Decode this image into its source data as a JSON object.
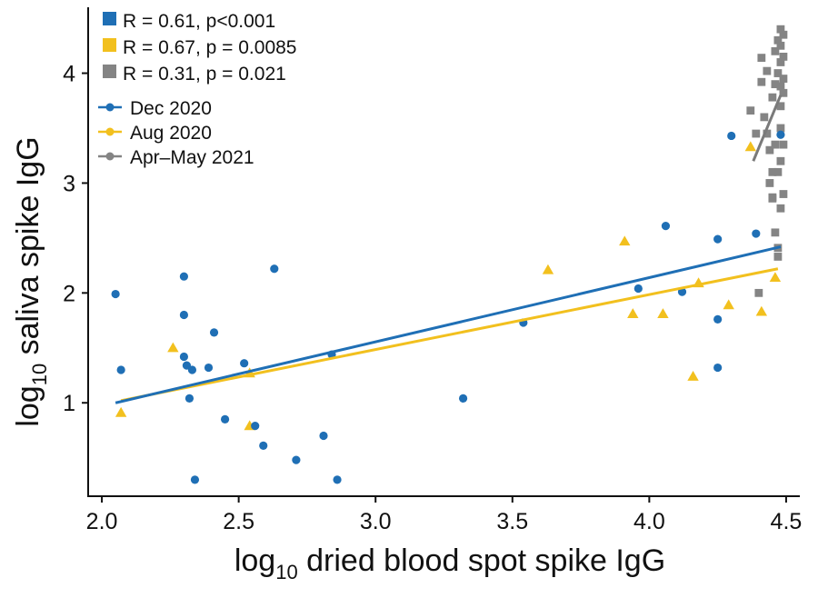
{
  "chart_data": {
    "type": "scatter",
    "xlabel": "log10 dried blood spot spike IgG",
    "ylabel": "log10 saliva spike IgG",
    "axis_label_parts": {
      "x": {
        "prefix": "log",
        "sub": "10",
        "suffix": " dried blood spot spike IgG"
      },
      "y": {
        "prefix": "log",
        "sub": "10",
        "suffix": " saliva spike IgG"
      }
    },
    "xlim": [
      1.95,
      4.55
    ],
    "ylim": [
      0.15,
      4.6
    ],
    "x_ticks": [
      2.0,
      2.5,
      3.0,
      3.5,
      4.0,
      4.5
    ],
    "x_tick_labels": [
      "2.0",
      "2.5",
      "3.0",
      "3.5",
      "4.0",
      "4.5"
    ],
    "y_ticks": [
      1,
      2,
      3,
      4
    ],
    "y_tick_labels": [
      "1",
      "2",
      "3",
      "4"
    ],
    "grid": false,
    "legend_placement": "top-left",
    "stats_legend": [
      {
        "label": "R = 0.61, p<0.001",
        "color": "#1f6fb5"
      },
      {
        "label": "R = 0.67, p = 0.0085",
        "color": "#f2c01e"
      },
      {
        "label": "R = 0.31, p = 0.021",
        "color": "#848484"
      }
    ],
    "series": [
      {
        "name": "Dec 2020",
        "color": "#1f6fb5",
        "marker": "circle",
        "fit": [
          [
            2.05,
            1.0
          ],
          [
            4.48,
            2.42
          ]
        ],
        "points": [
          [
            2.05,
            1.99
          ],
          [
            2.07,
            1.3
          ],
          [
            2.3,
            2.15
          ],
          [
            2.3,
            1.8
          ],
          [
            2.3,
            1.42
          ],
          [
            2.31,
            1.34
          ],
          [
            2.33,
            1.3
          ],
          [
            2.32,
            1.04
          ],
          [
            2.34,
            0.3
          ],
          [
            2.39,
            1.32
          ],
          [
            2.41,
            1.64
          ],
          [
            2.45,
            0.85
          ],
          [
            2.52,
            1.36
          ],
          [
            2.56,
            0.79
          ],
          [
            2.59,
            0.61
          ],
          [
            2.63,
            2.22
          ],
          [
            2.71,
            0.48
          ],
          [
            2.81,
            0.7
          ],
          [
            2.84,
            1.44
          ],
          [
            2.86,
            0.3
          ],
          [
            3.32,
            1.04
          ],
          [
            3.54,
            1.73
          ],
          [
            3.96,
            2.04
          ],
          [
            4.06,
            2.61
          ],
          [
            4.12,
            2.01
          ],
          [
            4.25,
            1.76
          ],
          [
            4.25,
            1.32
          ],
          [
            4.25,
            2.49
          ],
          [
            4.3,
            3.43
          ],
          [
            4.39,
            2.54
          ],
          [
            4.48,
            3.44
          ]
        ]
      },
      {
        "name": "Aug 2020",
        "color": "#f2c01e",
        "marker": "triangle",
        "fit": [
          [
            2.07,
            1.02
          ],
          [
            4.47,
            2.22
          ]
        ],
        "points": [
          [
            2.07,
            0.91
          ],
          [
            2.26,
            1.5
          ],
          [
            2.54,
            0.79
          ],
          [
            2.54,
            1.27
          ],
          [
            3.63,
            2.21
          ],
          [
            3.91,
            2.47
          ],
          [
            3.94,
            1.81
          ],
          [
            4.05,
            1.81
          ],
          [
            4.16,
            1.24
          ],
          [
            4.18,
            2.09
          ],
          [
            4.29,
            1.89
          ],
          [
            4.37,
            3.33
          ],
          [
            4.41,
            1.83
          ],
          [
            4.46,
            2.14
          ]
        ]
      },
      {
        "name": "Apr–May 2021",
        "color": "#848484",
        "marker": "square",
        "fit": [
          [
            4.38,
            3.2
          ],
          [
            4.48,
            3.8
          ]
        ],
        "points": [
          [
            4.37,
            3.66
          ],
          [
            4.39,
            3.45
          ],
          [
            4.4,
            2.0
          ],
          [
            4.41,
            3.92
          ],
          [
            4.41,
            4.14
          ],
          [
            4.42,
            3.6
          ],
          [
            4.43,
            4.02
          ],
          [
            4.43,
            3.45
          ],
          [
            4.44,
            3.3
          ],
          [
            4.44,
            3.0
          ],
          [
            4.45,
            3.78
          ],
          [
            4.45,
            3.1
          ],
          [
            4.45,
            2.87
          ],
          [
            4.45,
            2.86
          ],
          [
            4.46,
            4.2
          ],
          [
            4.46,
            3.9
          ],
          [
            4.46,
            3.35
          ],
          [
            4.46,
            2.55
          ],
          [
            4.47,
            4.3
          ],
          [
            4.47,
            4.0
          ],
          [
            4.47,
            3.1
          ],
          [
            4.47,
            2.33
          ],
          [
            4.47,
            2.41
          ],
          [
            4.48,
            4.4
          ],
          [
            4.48,
            4.25
          ],
          [
            4.48,
            4.1
          ],
          [
            4.48,
            3.88
          ],
          [
            4.48,
            3.7
          ],
          [
            4.48,
            3.5
          ],
          [
            4.48,
            3.2
          ],
          [
            4.48,
            2.77
          ],
          [
            4.49,
            4.35
          ],
          [
            4.49,
            4.15
          ],
          [
            4.49,
            3.95
          ],
          [
            4.49,
            3.82
          ],
          [
            4.49,
            3.35
          ],
          [
            4.49,
            2.9
          ]
        ]
      }
    ]
  }
}
